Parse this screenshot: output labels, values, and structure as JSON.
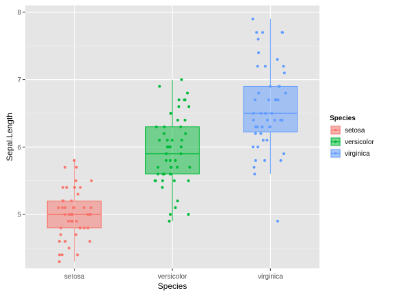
{
  "chart_data": {
    "type": "boxplot",
    "xlabel": "Species",
    "ylabel": "Sepal.Length",
    "categories": [
      "setosa",
      "versicolor",
      "virginica"
    ],
    "yticks": [
      5,
      6,
      7,
      8
    ],
    "ylim": [
      4.2,
      8.1
    ],
    "grid": true,
    "legend": {
      "title": "Species",
      "position": "right",
      "entries": [
        "setosa",
        "versicolor",
        "virginica"
      ]
    },
    "colors": {
      "setosa": "#F8766D",
      "versicolor": "#00BA38",
      "virginica": "#619CFF",
      "panel_bg": "#E5E5E5",
      "grid": "#FFFFFF"
    },
    "boxes": [
      {
        "category": "setosa",
        "min": 4.3,
        "q1": 4.8,
        "median": 5.0,
        "q3": 5.2,
        "max": 5.8
      },
      {
        "category": "versicolor",
        "min": 4.9,
        "q1": 5.6,
        "median": 5.9,
        "q3": 6.3,
        "max": 7.0
      },
      {
        "category": "virginica",
        "min": 5.6,
        "q1": 6.225,
        "median": 6.5,
        "q3": 6.9,
        "max": 7.9,
        "outliers": [
          4.9
        ]
      }
    ],
    "points": {
      "setosa": [
        5.1,
        4.9,
        4.7,
        4.6,
        5.0,
        5.4,
        4.6,
        5.0,
        4.4,
        4.9,
        5.4,
        4.8,
        4.8,
        4.3,
        5.8,
        5.7,
        5.4,
        5.1,
        5.7,
        5.1,
        5.4,
        5.1,
        4.6,
        5.1,
        4.8,
        5.0,
        5.0,
        5.2,
        5.2,
        4.7,
        4.8,
        5.4,
        5.2,
        5.5,
        4.9,
        5.0,
        5.5,
        4.9,
        4.4,
        5.1,
        5.0,
        4.5,
        4.4,
        5.0,
        5.1,
        4.8,
        5.1,
        4.6,
        5.3,
        5.0
      ],
      "versicolor": [
        7.0,
        6.4,
        6.9,
        5.5,
        6.5,
        5.7,
        6.3,
        4.9,
        6.6,
        5.2,
        5.0,
        5.9,
        6.0,
        6.1,
        5.6,
        6.7,
        5.6,
        5.8,
        6.2,
        5.6,
        5.9,
        6.1,
        6.3,
        6.1,
        6.4,
        6.6,
        6.8,
        6.7,
        6.0,
        5.7,
        5.5,
        5.5,
        5.8,
        6.0,
        5.4,
        6.0,
        6.7,
        6.3,
        5.6,
        5.5,
        5.5,
        6.1,
        5.8,
        5.0,
        5.6,
        5.7,
        5.7,
        6.2,
        5.1,
        5.7
      ],
      "virginica": [
        6.3,
        5.8,
        7.1,
        6.3,
        6.5,
        7.6,
        4.9,
        7.3,
        6.7,
        7.2,
        6.5,
        6.4,
        6.8,
        5.7,
        5.8,
        6.4,
        6.5,
        7.7,
        7.7,
        6.0,
        6.9,
        5.6,
        7.7,
        6.3,
        6.7,
        7.2,
        6.2,
        6.1,
        6.4,
        7.2,
        7.4,
        7.9,
        6.4,
        6.3,
        6.1,
        7.7,
        6.3,
        6.4,
        6.0,
        6.9,
        6.7,
        6.9,
        5.8,
        6.8,
        6.7,
        6.7,
        6.3,
        6.5,
        6.2,
        5.9
      ]
    }
  }
}
